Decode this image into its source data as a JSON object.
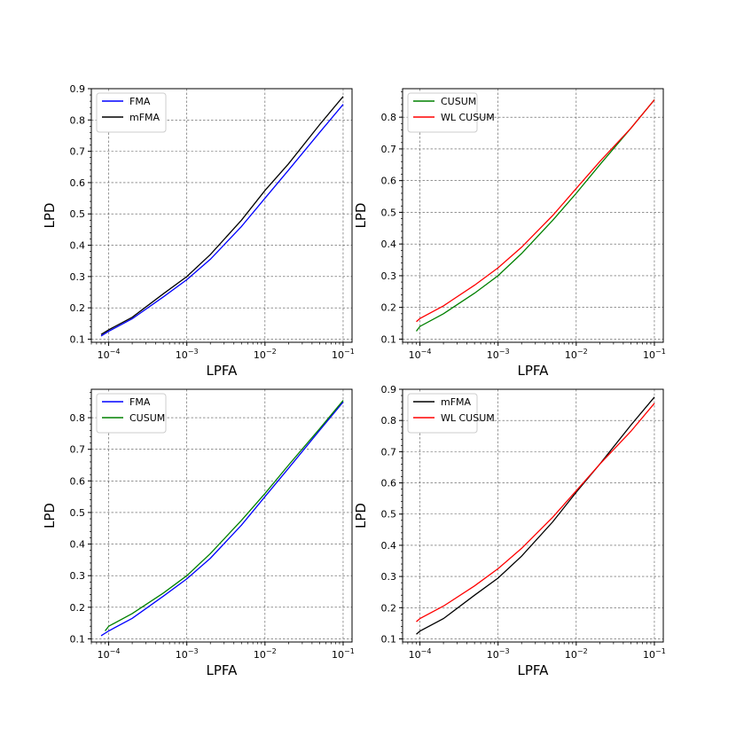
{
  "chart_data": [
    {
      "type": "line",
      "xscale": "log",
      "xlabel": "LPFA",
      "ylabel": "LPD",
      "xlim": [
        6e-05,
        0.13
      ],
      "ylim": [
        0.09,
        0.9
      ],
      "yticks": [
        "0.1",
        "0.2",
        "0.3",
        "0.4",
        "0.5",
        "0.6",
        "0.7",
        "0.8",
        "0.9"
      ],
      "xticks": [
        "10^-4",
        "10^-3",
        "10^-2",
        "10^-1"
      ],
      "grid": true,
      "legend_position": "top-left",
      "series": [
        {
          "name": "FMA",
          "color": "#0000ff",
          "x": [
            8e-05,
            0.0001,
            0.0002,
            0.0005,
            0.001,
            0.002,
            0.005,
            0.01,
            0.02,
            0.05,
            0.1
          ],
          "y": [
            0.11,
            0.125,
            0.165,
            0.235,
            0.29,
            0.355,
            0.46,
            0.55,
            0.64,
            0.76,
            0.85
          ]
        },
        {
          "name": "mFMA",
          "color": "#000000",
          "x": [
            8e-05,
            0.0001,
            0.0002,
            0.0005,
            0.001,
            0.002,
            0.005,
            0.01,
            0.02,
            0.05,
            0.1
          ],
          "y": [
            0.115,
            0.13,
            0.17,
            0.245,
            0.3,
            0.37,
            0.48,
            0.575,
            0.66,
            0.785,
            0.875
          ]
        }
      ]
    },
    {
      "type": "line",
      "xscale": "log",
      "xlabel": "LPFA",
      "ylabel": "LPD",
      "xlim": [
        6e-05,
        0.13
      ],
      "ylim": [
        0.09,
        0.89
      ],
      "yticks": [
        "0.1",
        "0.2",
        "0.3",
        "0.4",
        "0.5",
        "0.6",
        "0.7",
        "0.8"
      ],
      "xticks": [
        "10^-4",
        "10^-3",
        "10^-2",
        "10^-1"
      ],
      "grid": true,
      "legend_position": "top-left",
      "series": [
        {
          "name": "CUSUM",
          "color": "#008000",
          "x": [
            9e-05,
            0.0001,
            0.0002,
            0.0005,
            0.001,
            0.002,
            0.005,
            0.01,
            0.02,
            0.05,
            0.1
          ],
          "y": [
            0.125,
            0.14,
            0.18,
            0.245,
            0.3,
            0.37,
            0.475,
            0.56,
            0.65,
            0.765,
            0.855
          ]
        },
        {
          "name": "WL CUSUM",
          "color": "#ff0000",
          "x": [
            9e-05,
            0.0001,
            0.0002,
            0.0005,
            0.001,
            0.002,
            0.005,
            0.01,
            0.02,
            0.05,
            0.1
          ],
          "y": [
            0.155,
            0.165,
            0.205,
            0.27,
            0.325,
            0.39,
            0.49,
            0.575,
            0.66,
            0.765,
            0.855
          ]
        }
      ]
    },
    {
      "type": "line",
      "xscale": "log",
      "xlabel": "LPFA",
      "ylabel": "LPD",
      "xlim": [
        6e-05,
        0.13
      ],
      "ylim": [
        0.09,
        0.89
      ],
      "yticks": [
        "0.1",
        "0.2",
        "0.3",
        "0.4",
        "0.5",
        "0.6",
        "0.7",
        "0.8"
      ],
      "xticks": [
        "10^-4",
        "10^-3",
        "10^-2",
        "10^-1"
      ],
      "grid": true,
      "legend_position": "top-left",
      "series": [
        {
          "name": "FMA",
          "color": "#0000ff",
          "x": [
            8e-05,
            0.0001,
            0.0002,
            0.0005,
            0.001,
            0.002,
            0.005,
            0.01,
            0.02,
            0.05,
            0.1
          ],
          "y": [
            0.11,
            0.125,
            0.165,
            0.235,
            0.29,
            0.355,
            0.46,
            0.55,
            0.64,
            0.76,
            0.85
          ]
        },
        {
          "name": "CUSUM",
          "color": "#008000",
          "x": [
            9e-05,
            0.0001,
            0.0002,
            0.0005,
            0.001,
            0.002,
            0.005,
            0.01,
            0.02,
            0.05,
            0.1
          ],
          "y": [
            0.125,
            0.14,
            0.18,
            0.245,
            0.3,
            0.37,
            0.475,
            0.56,
            0.65,
            0.765,
            0.855
          ]
        }
      ]
    },
    {
      "type": "line",
      "xscale": "log",
      "xlabel": "LPFA",
      "ylabel": "LPD",
      "xlim": [
        6e-05,
        0.13
      ],
      "ylim": [
        0.09,
        0.9
      ],
      "yticks": [
        "0.1",
        "0.2",
        "0.3",
        "0.4",
        "0.5",
        "0.6",
        "0.7",
        "0.8",
        "0.9"
      ],
      "xticks": [
        "10^-4",
        "10^-3",
        "10^-2",
        "10^-1"
      ],
      "grid": true,
      "legend_position": "top-left",
      "series": [
        {
          "name": "mFMA",
          "color": "#000000",
          "x": [
            9e-05,
            0.0001,
            0.0002,
            0.0005,
            0.001,
            0.002,
            0.005,
            0.01,
            0.02,
            0.05,
            0.1
          ],
          "y": [
            0.115,
            0.125,
            0.165,
            0.24,
            0.295,
            0.365,
            0.475,
            0.57,
            0.66,
            0.785,
            0.875
          ]
        },
        {
          "name": "WL CUSUM",
          "color": "#ff0000",
          "x": [
            9e-05,
            0.0001,
            0.0002,
            0.0005,
            0.001,
            0.002,
            0.005,
            0.01,
            0.02,
            0.05,
            0.1
          ],
          "y": [
            0.155,
            0.165,
            0.205,
            0.27,
            0.325,
            0.39,
            0.49,
            0.575,
            0.66,
            0.765,
            0.855
          ]
        }
      ]
    }
  ]
}
